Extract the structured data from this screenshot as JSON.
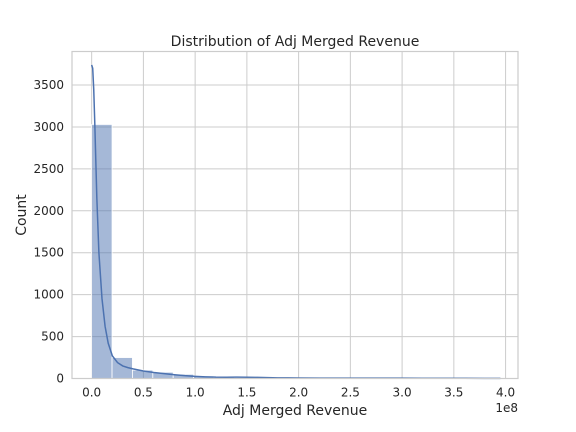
{
  "chart_data": {
    "type": "bar",
    "subtype": "histogram-with-kde",
    "title": "Distribution of Adj Merged Revenue",
    "xlabel": "Adj Merged Revenue",
    "ylabel": "Count",
    "x_offset_label": "1e8",
    "xlim": [
      -0.19,
      4.12
    ],
    "ylim": [
      0,
      3900
    ],
    "xticks": [
      0.0,
      0.5,
      1.0,
      1.5,
      2.0,
      2.5,
      3.0,
      3.5,
      4.0
    ],
    "xtick_labels": [
      "0.0",
      "0.5",
      "1.0",
      "1.5",
      "2.0",
      "2.5",
      "3.0",
      "3.5",
      "4.0"
    ],
    "yticks": [
      0,
      500,
      1000,
      1500,
      2000,
      2500,
      3000,
      3500
    ],
    "ytick_labels": [
      "0",
      "500",
      "1000",
      "1500",
      "2000",
      "2500",
      "3000",
      "3500"
    ],
    "grid": true,
    "color": "#4c72b0",
    "bin_start": 0.0,
    "bin_width": 0.197,
    "values": [
      3030,
      250,
      100,
      75,
      50,
      30,
      18,
      12,
      10,
      8,
      6,
      5,
      5,
      4,
      4,
      3,
      3,
      3,
      3,
      2
    ],
    "kde": {
      "x": [
        0.0,
        0.01,
        0.02,
        0.03,
        0.04,
        0.05,
        0.07,
        0.1,
        0.13,
        0.16,
        0.2,
        0.25,
        0.3,
        0.35,
        0.4,
        0.5,
        0.6,
        0.7,
        0.8,
        0.9,
        1.0,
        1.1,
        1.2,
        1.3,
        1.4,
        1.5,
        1.6,
        1.7,
        1.8,
        1.9,
        2.0,
        2.2,
        2.4,
        2.6,
        2.8,
        3.0,
        3.2,
        3.4,
        3.6,
        3.8,
        3.95
      ],
      "y": [
        3740,
        3700,
        3450,
        3050,
        2600,
        2150,
        1500,
        950,
        620,
        420,
        270,
        190,
        150,
        130,
        115,
        90,
        72,
        58,
        45,
        34,
        26,
        20,
        16,
        15,
        16,
        15,
        13,
        10,
        8,
        7,
        6,
        5,
        5,
        4,
        4,
        4,
        3,
        3,
        3,
        2,
        2
      ]
    }
  }
}
